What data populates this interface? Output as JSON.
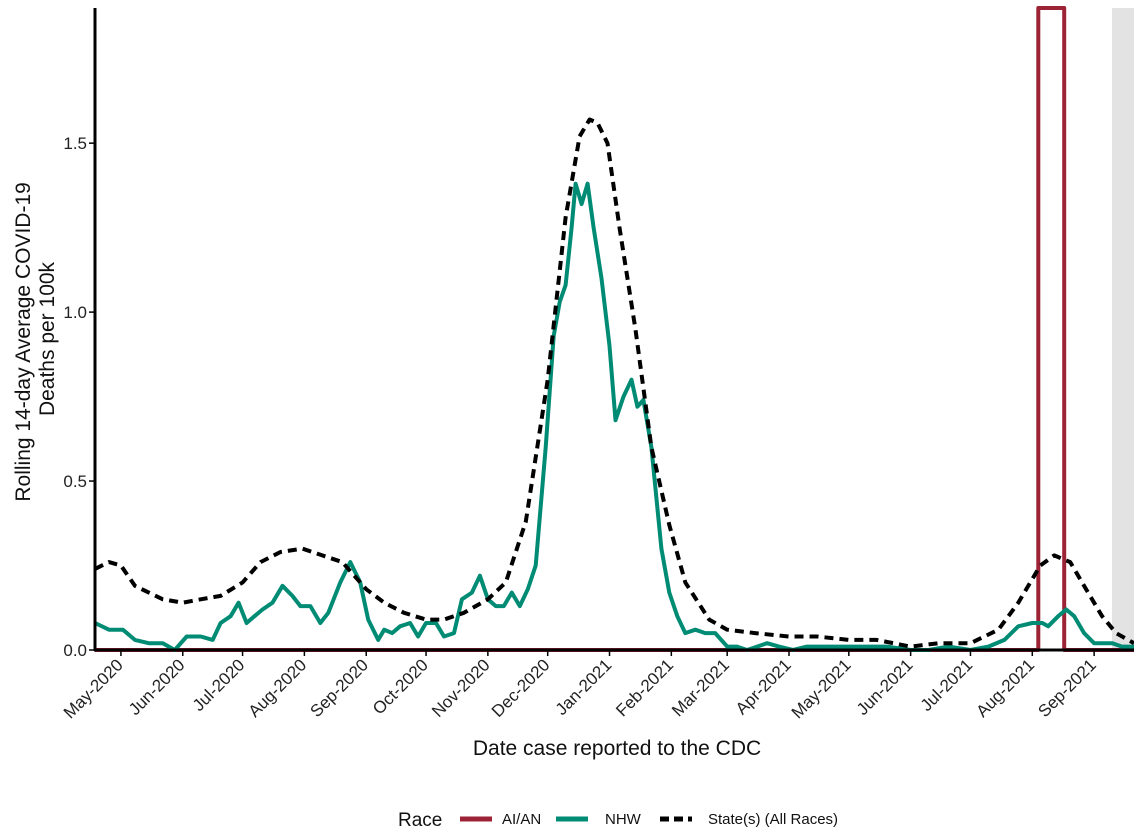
{
  "chart_data": {
    "type": "line",
    "title": "",
    "xlabel": "Date case reported to the CDC",
    "ylabel_line1": "Rolling 14-day Average COVID-19",
    "ylabel_line2": "Deaths per 100k",
    "x_domain": [
      "2020-04-18",
      "2021-09-21"
    ],
    "ylim": [
      0,
      1.9
    ],
    "y_ticks": [
      0.0,
      0.5,
      1.0,
      1.5
    ],
    "y_tick_labels": [
      "0.0",
      "0.5",
      "1.0",
      "1.5"
    ],
    "x_ticks": [
      "2020-05-01",
      "2020-06-01",
      "2020-07-01",
      "2020-08-01",
      "2020-09-01",
      "2020-10-01",
      "2020-11-01",
      "2020-12-01",
      "2021-01-01",
      "2021-02-01",
      "2021-03-01",
      "2021-04-01",
      "2021-05-01",
      "2021-06-01",
      "2021-07-01",
      "2021-08-01",
      "2021-09-01"
    ],
    "x_tick_labels": [
      "May-2020",
      "Jun-2020",
      "Jul-2020",
      "Aug-2020",
      "Sep-2020",
      "Oct-2020",
      "Nov-2020",
      "Dec-2020",
      "Jan-2021",
      "Feb-2021",
      "Mar-2021",
      "Apr-2021",
      "May-2021",
      "Jun-2021",
      "Jul-2021",
      "Aug-2021",
      "Sep-2021"
    ],
    "shaded_region": [
      "2021-09-10",
      "2021-09-21"
    ],
    "grid": false,
    "legend": {
      "title": "Race",
      "position": "bottom",
      "entries": [
        {
          "label": "AI/AN",
          "color": "#9b2335",
          "style": "solid"
        },
        {
          "label": "NHW",
          "color": "#008b74",
          "style": "solid"
        },
        {
          "label": "State(s) (All Races)",
          "color": "#000000",
          "style": "dashed"
        }
      ]
    },
    "series": [
      {
        "name": "AI/AN",
        "color": "#9b2335",
        "style": "solid",
        "points": [
          [
            "2020-04-18",
            0
          ],
          [
            "2021-08-04",
            0
          ],
          [
            "2021-08-04",
            1.9
          ],
          [
            "2021-08-17",
            1.9
          ],
          [
            "2021-08-17",
            0
          ],
          [
            "2021-09-21",
            0
          ]
        ]
      },
      {
        "name": "NHW",
        "color": "#008b74",
        "style": "solid",
        "points": [
          [
            "2020-04-18",
            0.08
          ],
          [
            "2020-04-25",
            0.06
          ],
          [
            "2020-05-02",
            0.06
          ],
          [
            "2020-05-08",
            0.03
          ],
          [
            "2020-05-15",
            0.02
          ],
          [
            "2020-05-22",
            0.02
          ],
          [
            "2020-05-28",
            0.0
          ],
          [
            "2020-06-03",
            0.04
          ],
          [
            "2020-06-10",
            0.04
          ],
          [
            "2020-06-16",
            0.03
          ],
          [
            "2020-06-20",
            0.08
          ],
          [
            "2020-06-25",
            0.1
          ],
          [
            "2020-06-29",
            0.14
          ],
          [
            "2020-07-03",
            0.08
          ],
          [
            "2020-07-07",
            0.1
          ],
          [
            "2020-07-11",
            0.12
          ],
          [
            "2020-07-16",
            0.14
          ],
          [
            "2020-07-21",
            0.19
          ],
          [
            "2020-07-26",
            0.16
          ],
          [
            "2020-07-30",
            0.13
          ],
          [
            "2020-08-04",
            0.13
          ],
          [
            "2020-08-09",
            0.08
          ],
          [
            "2020-08-13",
            0.11
          ],
          [
            "2020-08-19",
            0.2
          ],
          [
            "2020-08-24",
            0.26
          ],
          [
            "2020-08-29",
            0.2
          ],
          [
            "2020-09-02",
            0.09
          ],
          [
            "2020-09-07",
            0.03
          ],
          [
            "2020-09-10",
            0.06
          ],
          [
            "2020-09-14",
            0.05
          ],
          [
            "2020-09-18",
            0.07
          ],
          [
            "2020-09-23",
            0.08
          ],
          [
            "2020-09-27",
            0.04
          ],
          [
            "2020-10-01",
            0.08
          ],
          [
            "2020-10-06",
            0.08
          ],
          [
            "2020-10-10",
            0.04
          ],
          [
            "2020-10-15",
            0.05
          ],
          [
            "2020-10-19",
            0.15
          ],
          [
            "2020-10-24",
            0.17
          ],
          [
            "2020-10-28",
            0.22
          ],
          [
            "2020-11-01",
            0.15
          ],
          [
            "2020-11-05",
            0.13
          ],
          [
            "2020-11-09",
            0.13
          ],
          [
            "2020-11-13",
            0.17
          ],
          [
            "2020-11-17",
            0.13
          ],
          [
            "2020-11-21",
            0.18
          ],
          [
            "2020-11-25",
            0.25
          ],
          [
            "2020-11-30",
            0.6
          ],
          [
            "2020-12-04",
            0.93
          ],
          [
            "2020-12-07",
            1.03
          ],
          [
            "2020-12-10",
            1.08
          ],
          [
            "2020-12-13",
            1.25
          ],
          [
            "2020-12-15",
            1.38
          ],
          [
            "2020-12-18",
            1.32
          ],
          [
            "2020-12-21",
            1.38
          ],
          [
            "2020-12-24",
            1.25
          ],
          [
            "2020-12-28",
            1.1
          ],
          [
            "2021-01-01",
            0.9
          ],
          [
            "2021-01-04",
            0.68
          ],
          [
            "2021-01-08",
            0.75
          ],
          [
            "2021-01-12",
            0.8
          ],
          [
            "2021-01-15",
            0.72
          ],
          [
            "2021-01-18",
            0.74
          ],
          [
            "2021-01-22",
            0.6
          ],
          [
            "2021-01-27",
            0.3
          ],
          [
            "2021-01-31",
            0.17
          ],
          [
            "2021-02-04",
            0.1
          ],
          [
            "2021-02-08",
            0.05
          ],
          [
            "2021-02-13",
            0.06
          ],
          [
            "2021-02-18",
            0.05
          ],
          [
            "2021-02-23",
            0.05
          ],
          [
            "2021-03-01",
            0.01
          ],
          [
            "2021-03-06",
            0.01
          ],
          [
            "2021-03-11",
            0.0
          ],
          [
            "2021-03-16",
            0.01
          ],
          [
            "2021-03-21",
            0.02
          ],
          [
            "2021-03-27",
            0.01
          ],
          [
            "2021-04-03",
            0.0
          ],
          [
            "2021-04-10",
            0.01
          ],
          [
            "2021-04-20",
            0.01
          ],
          [
            "2021-05-01",
            0.01
          ],
          [
            "2021-05-10",
            0.01
          ],
          [
            "2021-05-20",
            0.01
          ],
          [
            "2021-06-01",
            0.0
          ],
          [
            "2021-06-10",
            0.0
          ],
          [
            "2021-06-20",
            0.01
          ],
          [
            "2021-07-01",
            0.0
          ],
          [
            "2021-07-10",
            0.01
          ],
          [
            "2021-07-18",
            0.03
          ],
          [
            "2021-07-25",
            0.07
          ],
          [
            "2021-08-01",
            0.08
          ],
          [
            "2021-08-06",
            0.08
          ],
          [
            "2021-08-09",
            0.07
          ],
          [
            "2021-08-14",
            0.1
          ],
          [
            "2021-08-18",
            0.12
          ],
          [
            "2021-08-22",
            0.1
          ],
          [
            "2021-08-27",
            0.05
          ],
          [
            "2021-09-01",
            0.02
          ],
          [
            "2021-09-05",
            0.02
          ],
          [
            "2021-09-10",
            0.02
          ],
          [
            "2021-09-15",
            0.01
          ],
          [
            "2021-09-21",
            0.01
          ]
        ]
      },
      {
        "name": "State(s) (All Races)",
        "color": "#000000",
        "style": "dashed",
        "points": [
          [
            "2020-04-18",
            0.24
          ],
          [
            "2020-04-25",
            0.26
          ],
          [
            "2020-05-01",
            0.25
          ],
          [
            "2020-05-08",
            0.19
          ],
          [
            "2020-05-15",
            0.17
          ],
          [
            "2020-05-22",
            0.15
          ],
          [
            "2020-06-01",
            0.14
          ],
          [
            "2020-06-10",
            0.15
          ],
          [
            "2020-06-20",
            0.16
          ],
          [
            "2020-07-01",
            0.2
          ],
          [
            "2020-07-10",
            0.26
          ],
          [
            "2020-07-20",
            0.29
          ],
          [
            "2020-07-31",
            0.3
          ],
          [
            "2020-08-10",
            0.28
          ],
          [
            "2020-08-20",
            0.26
          ],
          [
            "2020-09-01",
            0.18
          ],
          [
            "2020-09-10",
            0.14
          ],
          [
            "2020-09-20",
            0.11
          ],
          [
            "2020-10-01",
            0.09
          ],
          [
            "2020-10-10",
            0.09
          ],
          [
            "2020-10-20",
            0.11
          ],
          [
            "2020-11-01",
            0.15
          ],
          [
            "2020-11-10",
            0.2
          ],
          [
            "2020-11-20",
            0.38
          ],
          [
            "2020-12-01",
            0.8
          ],
          [
            "2020-12-10",
            1.28
          ],
          [
            "2020-12-17",
            1.52
          ],
          [
            "2020-12-22",
            1.57
          ],
          [
            "2020-12-26",
            1.56
          ],
          [
            "2020-12-31",
            1.5
          ],
          [
            "2021-01-06",
            1.25
          ],
          [
            "2021-01-14",
            0.95
          ],
          [
            "2021-01-22",
            0.6
          ],
          [
            "2021-01-31",
            0.37
          ],
          [
            "2021-02-08",
            0.2
          ],
          [
            "2021-02-20",
            0.09
          ],
          [
            "2021-03-01",
            0.06
          ],
          [
            "2021-03-15",
            0.05
          ],
          [
            "2021-04-01",
            0.04
          ],
          [
            "2021-04-15",
            0.04
          ],
          [
            "2021-05-01",
            0.03
          ],
          [
            "2021-05-15",
            0.03
          ],
          [
            "2021-06-01",
            0.01
          ],
          [
            "2021-06-15",
            0.02
          ],
          [
            "2021-07-01",
            0.02
          ],
          [
            "2021-07-15",
            0.06
          ],
          [
            "2021-07-25",
            0.14
          ],
          [
            "2021-08-05",
            0.25
          ],
          [
            "2021-08-12",
            0.28
          ],
          [
            "2021-08-20",
            0.26
          ],
          [
            "2021-08-28",
            0.18
          ],
          [
            "2021-09-05",
            0.1
          ],
          [
            "2021-09-12",
            0.05
          ],
          [
            "2021-09-21",
            0.02
          ]
        ]
      }
    ]
  }
}
